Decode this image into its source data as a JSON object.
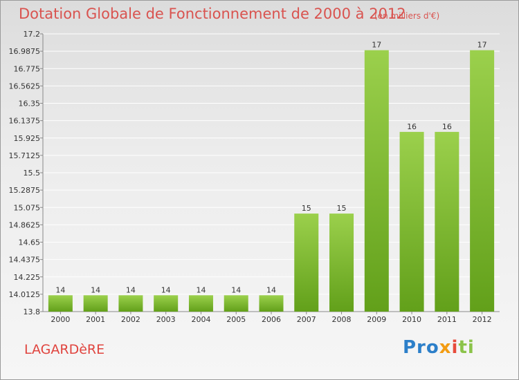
{
  "page": {
    "title": "Dotation Globale de Fonctionnement de 2000 à 2012",
    "subtitle": "(en milliers d'€)",
    "commune": "LAGARDèRE",
    "logo_text": "Proxiti"
  },
  "colors": {
    "bar_light": "#9bd04c",
    "bar_dark": "#62a01a",
    "title": "#d9534f",
    "grid": "#ffffff"
  },
  "chart_data": {
    "type": "bar",
    "title": "Dotation Globale de Fonctionnement de 2000 à 2012",
    "subtitle": "(en milliers d'€)",
    "xlabel": "",
    "ylabel": "",
    "categories": [
      "2000",
      "2001",
      "2002",
      "2003",
      "2004",
      "2005",
      "2006",
      "2007",
      "2008",
      "2009",
      "2010",
      "2011",
      "2012"
    ],
    "values": [
      14,
      14,
      14,
      14,
      14,
      14,
      14,
      15,
      15,
      17,
      16,
      16,
      17
    ],
    "data_labels": [
      "14",
      "14",
      "14",
      "14",
      "14",
      "14",
      "14",
      "15",
      "15",
      "17",
      "16",
      "16",
      "17"
    ],
    "ylim": [
      13.8,
      17.2
    ],
    "y_ticks": [
      13.8,
      14.0125,
      14.225,
      14.4375,
      14.65,
      14.8625,
      15.075,
      15.2875,
      15.5,
      15.7125,
      15.925,
      16.1375,
      16.35,
      16.5625,
      16.775,
      16.9875,
      17.2
    ],
    "y_tick_labels": [
      "13.8",
      "14.0125",
      "14.225",
      "14.4375",
      "14.65",
      "14.8625",
      "15.075",
      "15.2875",
      "15.5",
      "15.7125",
      "15.925",
      "16.1375",
      "16.35",
      "16.5625",
      "16.775",
      "16.9875",
      "17.2"
    ],
    "grid": true,
    "legend": "none"
  }
}
